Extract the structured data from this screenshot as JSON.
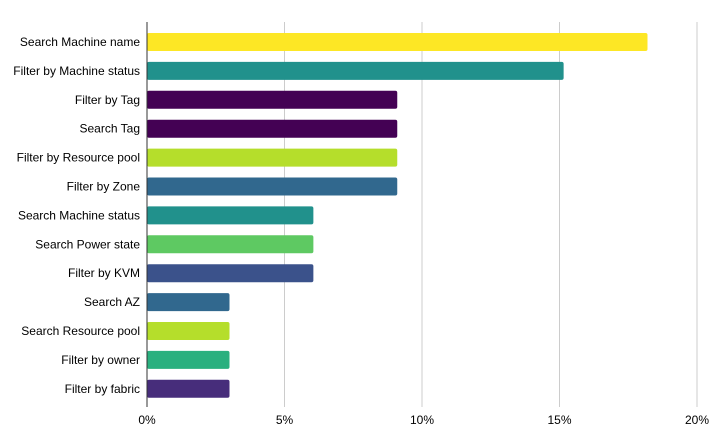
{
  "chart_data": {
    "type": "bar",
    "orientation": "horizontal",
    "title": "",
    "xlabel": "",
    "ylabel": "",
    "xlim": [
      0,
      20
    ],
    "tick_values": [
      0,
      5,
      10,
      15,
      20
    ],
    "tick_labels": [
      "0%",
      "5%",
      "10%",
      "15%",
      "20%"
    ],
    "grid": true,
    "categories": [
      "Search Machine name",
      "Filter by Machine status",
      "Filter by Tag",
      "Search Tag",
      "Filter by Resource pool",
      "Filter by Zone",
      "Search Machine status",
      "Search Power state",
      "Filter by KVM",
      "Search AZ",
      "Search Resource pool",
      "Filter by owner",
      "Filter by fabric"
    ],
    "values": [
      18.2,
      15.15,
      9.1,
      9.1,
      9.1,
      9.1,
      6.05,
      6.05,
      6.05,
      3.0,
      3.0,
      3.0,
      3.0
    ],
    "colors": [
      "#fde725",
      "#21918c",
      "#440154",
      "#440154",
      "#b5de2b",
      "#31688e",
      "#21918c",
      "#5ec962",
      "#3b528b",
      "#31688e",
      "#b5de2b",
      "#2ab07f",
      "#472d7b"
    ]
  }
}
